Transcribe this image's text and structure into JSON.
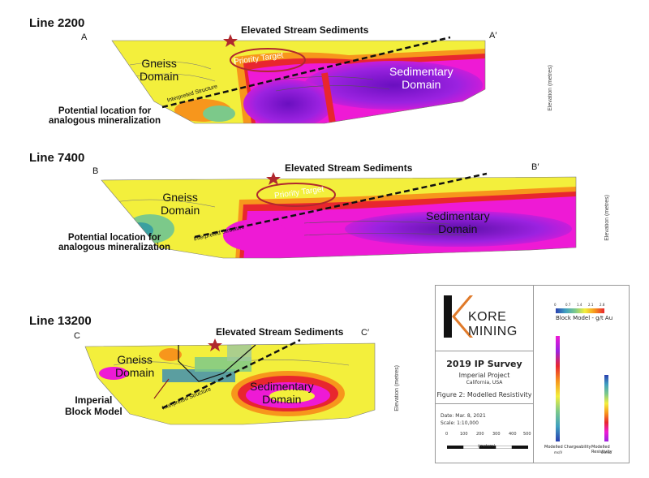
{
  "sections": [
    {
      "title": "Line 2200",
      "start_label": "A",
      "end_label": "A′",
      "stream_label": "Elevated Stream Sediments",
      "gneiss_label_1": "Gneiss",
      "gneiss_label_2": "Domain",
      "sed_label_1": "Sedimentary",
      "sed_label_2": "Domain",
      "priority_label": "Priority Target",
      "structure_label": "Interpreted Structure",
      "callout_1": "Potential location for",
      "callout_2": "analogous mineralization",
      "elevation_axis": "Elevation (metres)"
    },
    {
      "title": "Line 7400",
      "start_label": "B",
      "end_label": "B′",
      "stream_label": "Elevated Stream Sediments",
      "gneiss_label_1": "Gneiss",
      "gneiss_label_2": "Domain",
      "sed_label_1": "Sedimentary",
      "sed_label_2": "Domain",
      "priority_label": "Priority Target",
      "structure_label": "Interpreted Structure",
      "callout_1": "Potential location for",
      "callout_2": "analogous mineralization",
      "elevation_axis": "Elevation (metres)"
    },
    {
      "title": "Line 13200",
      "start_label": "C",
      "end_label": "C′",
      "stream_label": "Elevated Stream Sediments",
      "gneiss_label_1": "Gneiss",
      "gneiss_label_2": "Domain",
      "sed_label_1": "Sedimentary",
      "sed_label_2": "Domain",
      "structure_label": "Interpreted Structure",
      "callout_1": "Imperial",
      "callout_2": "Block Model",
      "elevation_axis": "Elevation (metres)"
    }
  ],
  "legend": {
    "company": "KORE MINING",
    "block_model_label": "Block Model - g/t Au",
    "block_model_ticks": [
      "0",
      "0.7",
      "1.4",
      "2.1",
      "2.8"
    ],
    "survey_title": "2019 IP Survey",
    "project": "Imperial Project",
    "location": "California, USA",
    "figure": "Figure 2: Modelled Resistivity",
    "date": "Date: Mar. 8, 2021",
    "scale": "Scale: 1:10,000",
    "scale_ticks": [
      "0",
      "100",
      "200",
      "300",
      "400",
      "500"
    ],
    "scale_unit": "(meters)",
    "chargeability_label": "Modelled Chargeability",
    "chargeability_unit": "ms/V",
    "resistivity_label": "Modelled Resistivity",
    "resistivity_unit": "ohmm"
  },
  "colors": {
    "gneiss_yellow": "#f3ef3c",
    "sed_purple": "#8a1ad8",
    "magenta": "#ee1ad5",
    "red": "#e8262e",
    "orange": "#f7961c",
    "green": "#7cc98a",
    "star": "#b0282e",
    "kore_orange": "#e07a2a"
  }
}
